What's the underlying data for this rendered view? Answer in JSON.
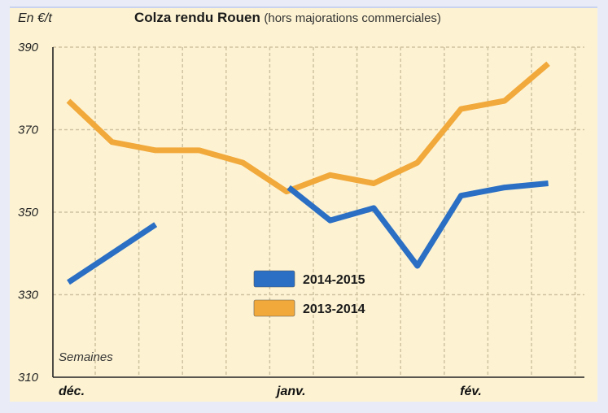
{
  "chart_data": {
    "type": "line",
    "title": "Colza rendu Rouen",
    "subtitle": "(hors majorations commerciales)",
    "ylabel": "En €/t",
    "xlabel": "Semaines",
    "ylim": [
      310,
      390
    ],
    "yticks": [
      390,
      370,
      350,
      330,
      310
    ],
    "xticks": [
      "déc.",
      "janv.",
      "fév."
    ],
    "grid": true,
    "legend_position": "center",
    "series": [
      {
        "name": "2014-2015",
        "color": "#2a6fc4",
        "segments": [
          [
            [
              0,
              333
            ],
            [
              1,
              340
            ],
            [
              2,
              347
            ]
          ],
          [
            [
              5.05,
              356
            ],
            [
              6,
              348
            ],
            [
              7,
              351
            ],
            [
              8,
              337
            ],
            [
              9,
              354
            ],
            [
              10,
              356
            ],
            [
              11,
              357
            ]
          ]
        ]
      },
      {
        "name": "2013-2014",
        "color": "#f2a93b",
        "segments": [
          [
            [
              0,
              377
            ],
            [
              1,
              367
            ],
            [
              2,
              365
            ],
            [
              3,
              365
            ],
            [
              4,
              362
            ],
            [
              5,
              355
            ],
            [
              6,
              359
            ],
            [
              7,
              357
            ],
            [
              8,
              362
            ],
            [
              9,
              375
            ],
            [
              10,
              377
            ],
            [
              11,
              386
            ]
          ]
        ]
      }
    ]
  }
}
